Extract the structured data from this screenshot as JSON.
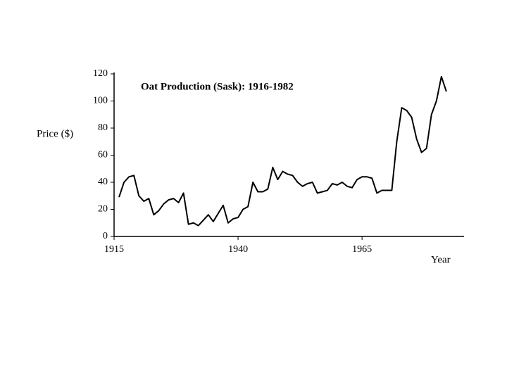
{
  "chart_data": {
    "type": "line",
    "title": "Oat Production (Sask): 1916-1982",
    "ylabel": "Price ($)",
    "xlabel": "Year",
    "x": [
      1916,
      1917,
      1918,
      1919,
      1920,
      1921,
      1922,
      1923,
      1924,
      1925,
      1926,
      1927,
      1928,
      1929,
      1930,
      1931,
      1932,
      1933,
      1934,
      1935,
      1936,
      1937,
      1938,
      1939,
      1940,
      1941,
      1942,
      1943,
      1944,
      1945,
      1946,
      1947,
      1948,
      1949,
      1950,
      1951,
      1952,
      1953,
      1954,
      1955,
      1956,
      1957,
      1958,
      1959,
      1960,
      1961,
      1962,
      1963,
      1964,
      1965,
      1966,
      1967,
      1968,
      1969,
      1970,
      1971,
      1972,
      1973,
      1974,
      1975,
      1976,
      1977,
      1978,
      1979,
      1980,
      1981,
      1982
    ],
    "series": [
      {
        "color": "#000000",
        "values": [
          29,
          40,
          44,
          45,
          30,
          26,
          28,
          16,
          19,
          24,
          27,
          28,
          25,
          32,
          9,
          10,
          8,
          12,
          16,
          11,
          17,
          23,
          10,
          13,
          14,
          20,
          22,
          40,
          33,
          33,
          35,
          51,
          42,
          48,
          46,
          45,
          40,
          37,
          39,
          40,
          32,
          33,
          34,
          39,
          38,
          40,
          37,
          36,
          42,
          44,
          44,
          43,
          32,
          34,
          34,
          34,
          70,
          95,
          93,
          88,
          72,
          62,
          65,
          90,
          100,
          118,
          107
        ]
      }
    ],
    "xlim": [
      1915,
      1985
    ],
    "xticks": [
      1915,
      1940,
      1965
    ],
    "ylim": [
      0,
      120
    ],
    "yticks": [
      0,
      20,
      40,
      60,
      80,
      100,
      120
    ]
  }
}
